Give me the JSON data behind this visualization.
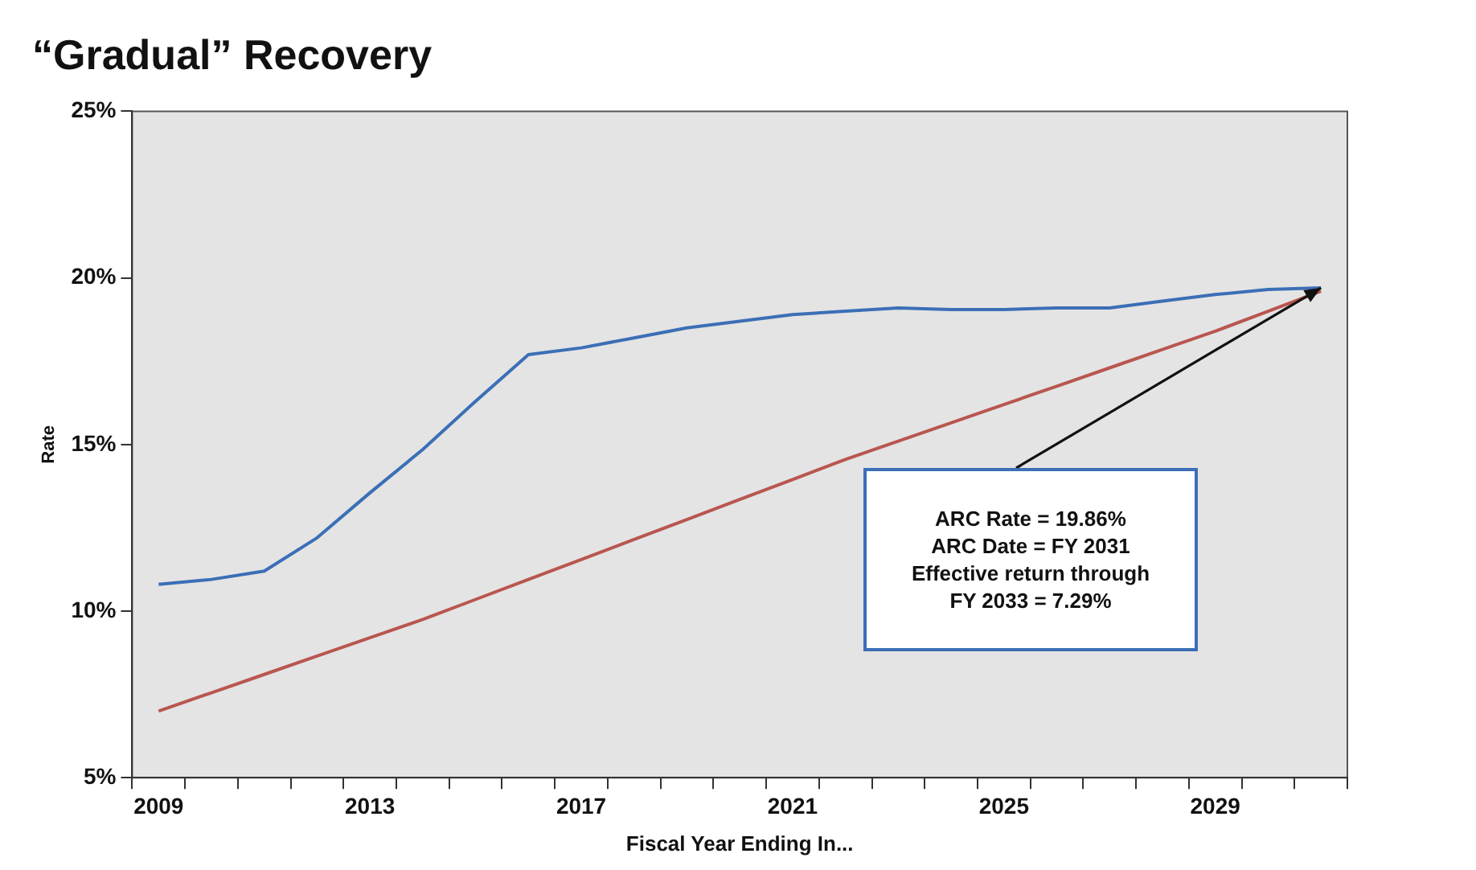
{
  "chart_data": {
    "type": "line",
    "title": "“Gradual” Recovery",
    "xlabel": "Fiscal Year Ending In...",
    "ylabel": "Rate",
    "categories": [
      "2009",
      null,
      null,
      null,
      "2013",
      null,
      null,
      null,
      "2017",
      null,
      null,
      null,
      "2021",
      null,
      null,
      null,
      "2025",
      null,
      null,
      null,
      "2029",
      null,
      null
    ],
    "series": [
      {
        "color": "#3b6fb6",
        "values": [
          10.8,
          10.95,
          11.2,
          12.2,
          13.55,
          14.85,
          16.3,
          17.7,
          17.9,
          18.2,
          18.5,
          18.7,
          18.9,
          19.0,
          19.1,
          19.05,
          19.05,
          19.1,
          19.1,
          19.3,
          19.5,
          19.65,
          19.7
        ]
      },
      {
        "color": "#b9564f",
        "values": [
          7.0,
          7.55,
          8.1,
          8.65,
          9.2,
          9.75,
          10.35,
          10.95,
          11.55,
          12.15,
          12.75,
          13.35,
          13.95,
          14.55,
          15.1,
          15.65,
          16.2,
          16.75,
          17.3,
          17.85,
          18.4,
          19.0,
          19.6
        ]
      }
    ],
    "ylim": [
      5,
      25
    ],
    "yticks": [
      {
        "value": 5,
        "label": "5%"
      },
      {
        "value": 10,
        "label": "10%"
      },
      {
        "value": 15,
        "label": "15%"
      },
      {
        "value": 20,
        "label": "20%"
      },
      {
        "value": 25,
        "label": "25%"
      }
    ],
    "annotations": [
      "ARC Rate = 19.86%\nARC Date = FY 2031\nEffective return through\nFY  2033 = 7.29%"
    ],
    "grid": false,
    "legend": false,
    "marker": "none",
    "line_style": "solid"
  }
}
